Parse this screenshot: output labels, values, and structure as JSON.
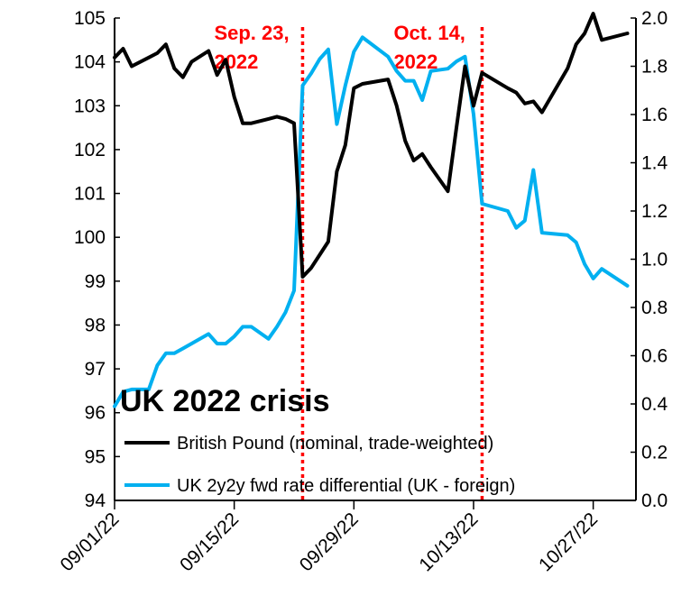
{
  "chart_data": {
    "type": "line",
    "title": "UK 2022 crisis",
    "x_tick_labels": [
      "09/01/22",
      "09/15/22",
      "09/29/22",
      "10/13/22",
      "10/27/22"
    ],
    "x_range": [
      "2022-09-01",
      "2022-11-01"
    ],
    "y_left": {
      "range": [
        94,
        105
      ],
      "ticks": [
        94,
        95,
        96,
        97,
        98,
        99,
        100,
        101,
        102,
        103,
        104,
        105
      ]
    },
    "y_right": {
      "range": [
        0.0,
        2.0
      ],
      "ticks": [
        "0.0",
        "0.2",
        "0.4",
        "0.6",
        "0.8",
        "1.0",
        "1.2",
        "1.4",
        "1.6",
        "1.8",
        "2.0"
      ]
    },
    "grid": false,
    "legend_position": "bottom-left",
    "annotations": [
      {
        "label_line1": "Sep. 23,",
        "label_line2": "2022",
        "date": "2022-09-23",
        "color": "#ff0000"
      },
      {
        "label_line1": "Oct. 14,",
        "label_line2": "2022",
        "date": "2022-10-14",
        "color": "#ff0000"
      }
    ],
    "series": [
      {
        "name": "British Pound (nominal, trade-weighted)",
        "axis": "left",
        "color": "#000000",
        "x": [
          "2022-09-01",
          "2022-09-02",
          "2022-09-03",
          "2022-09-05",
          "2022-09-06",
          "2022-09-07",
          "2022-09-08",
          "2022-09-09",
          "2022-09-10",
          "2022-09-12",
          "2022-09-13",
          "2022-09-14",
          "2022-09-15",
          "2022-09-16",
          "2022-09-17",
          "2022-09-19",
          "2022-09-20",
          "2022-09-21",
          "2022-09-22",
          "2022-09-23",
          "2022-09-24",
          "2022-09-25",
          "2022-09-26",
          "2022-09-27",
          "2022-09-28",
          "2022-09-29",
          "2022-09-30",
          "2022-10-03",
          "2022-10-04",
          "2022-10-05",
          "2022-10-06",
          "2022-10-07",
          "2022-10-08",
          "2022-10-10",
          "2022-10-11",
          "2022-10-12",
          "2022-10-13",
          "2022-10-14",
          "2022-10-17",
          "2022-10-18",
          "2022-10-19",
          "2022-10-20",
          "2022-10-21",
          "2022-10-24",
          "2022-10-25",
          "2022-10-26",
          "2022-10-27",
          "2022-10-28",
          "2022-10-31"
        ],
        "values": [
          104.1,
          104.3,
          103.9,
          104.1,
          104.2,
          104.4,
          103.85,
          103.65,
          104.0,
          104.25,
          103.7,
          104.05,
          103.2,
          102.6,
          102.6,
          102.7,
          102.75,
          102.7,
          102.6,
          99.1,
          99.3,
          99.6,
          99.9,
          101.5,
          102.1,
          103.4,
          103.5,
          103.6,
          103.0,
          102.2,
          101.75,
          101.9,
          101.6,
          101.05,
          102.5,
          103.9,
          103.0,
          103.75,
          103.4,
          103.3,
          103.05,
          103.1,
          102.85,
          103.85,
          104.4,
          104.65,
          105.1,
          104.5,
          104.65
        ]
      },
      {
        "name": "UK 2y2y fwd rate differential (UK - foreign)",
        "axis": "right",
        "color": "#00b0f0",
        "x": [
          "2022-09-01",
          "2022-09-02",
          "2022-09-03",
          "2022-09-05",
          "2022-09-06",
          "2022-09-07",
          "2022-09-08",
          "2022-09-09",
          "2022-09-10",
          "2022-09-12",
          "2022-09-13",
          "2022-09-14",
          "2022-09-15",
          "2022-09-16",
          "2022-09-17",
          "2022-09-19",
          "2022-09-20",
          "2022-09-21",
          "2022-09-22",
          "2022-09-23",
          "2022-09-24",
          "2022-09-25",
          "2022-09-26",
          "2022-09-27",
          "2022-09-28",
          "2022-09-29",
          "2022-09-30",
          "2022-10-03",
          "2022-10-04",
          "2022-10-05",
          "2022-10-06",
          "2022-10-07",
          "2022-10-08",
          "2022-10-10",
          "2022-10-11",
          "2022-10-12",
          "2022-10-13",
          "2022-10-14",
          "2022-10-17",
          "2022-10-18",
          "2022-10-19",
          "2022-10-20",
          "2022-10-21",
          "2022-10-24",
          "2022-10-25",
          "2022-10-26",
          "2022-10-27",
          "2022-10-28",
          "2022-10-31"
        ],
        "values": [
          0.39,
          0.45,
          0.46,
          0.46,
          0.56,
          0.61,
          0.61,
          0.63,
          0.65,
          0.69,
          0.65,
          0.65,
          0.68,
          0.72,
          0.72,
          0.67,
          0.72,
          0.78,
          0.87,
          1.72,
          1.77,
          1.83,
          1.87,
          1.56,
          1.72,
          1.86,
          1.92,
          1.84,
          1.78,
          1.74,
          1.74,
          1.66,
          1.78,
          1.79,
          1.82,
          1.84,
          1.6,
          1.23,
          1.2,
          1.13,
          1.16,
          1.37,
          1.11,
          1.1,
          1.07,
          0.98,
          0.92,
          0.96,
          0.89
        ]
      }
    ]
  }
}
